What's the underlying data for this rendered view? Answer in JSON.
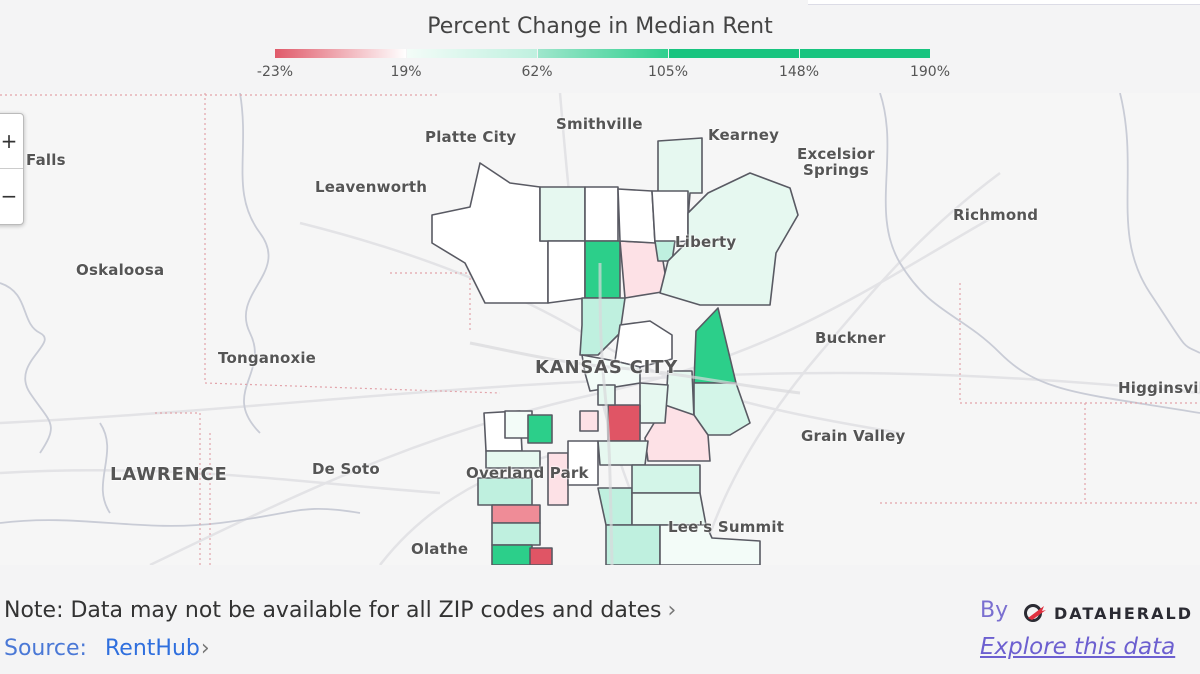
{
  "legend": {
    "title": "Percent Change in Median Rent",
    "ticks": [
      "-23%",
      "19%",
      "62%",
      "105%",
      "148%",
      "190%"
    ],
    "segments": [
      {
        "start": "#e05a6a",
        "end": "#ffffff"
      },
      {
        "start": "#f3fcf8",
        "end": "#bff0df"
      },
      {
        "start": "#9ee6cc",
        "end": "#2fcf8e"
      },
      {
        "start": "#18c47f",
        "end": "#18c47f"
      },
      {
        "start": "#18c47f",
        "end": "#18c47f"
      }
    ]
  },
  "map": {
    "zoom": {
      "in_label": "+",
      "out_label": "−"
    },
    "places": [
      {
        "name": "Falls",
        "cls": ""
      },
      {
        "name": "Platte City",
        "cls": ""
      },
      {
        "name": "Smithville",
        "cls": ""
      },
      {
        "name": "Kearney",
        "cls": ""
      },
      {
        "name": "Excelsior",
        "cls": ""
      },
      {
        "name": "Springs",
        "cls": ""
      },
      {
        "name": "Leavenworth",
        "cls": ""
      },
      {
        "name": "Richmond",
        "cls": ""
      },
      {
        "name": "Liberty",
        "cls": ""
      },
      {
        "name": "Oskaloosa",
        "cls": ""
      },
      {
        "name": "Buckner",
        "cls": ""
      },
      {
        "name": "Tonganoxie",
        "cls": ""
      },
      {
        "name": "KANSAS CITY",
        "cls": "big"
      },
      {
        "name": "Higginsvil",
        "cls": ""
      },
      {
        "name": "Grain Valley",
        "cls": ""
      },
      {
        "name": "LAWRENCE",
        "cls": "big"
      },
      {
        "name": "De Soto",
        "cls": ""
      },
      {
        "name": "Overland Park",
        "cls": ""
      },
      {
        "name": "Lee's Summit",
        "cls": ""
      },
      {
        "name": "Olathe",
        "cls": ""
      }
    ]
  },
  "footer": {
    "note": "Note: Data may not be available for all ZIP codes and dates",
    "source_label": "Source:",
    "source_name": "RentHub",
    "by": "By",
    "brand": "DATAHERALD",
    "explore": "Explore this data"
  }
}
